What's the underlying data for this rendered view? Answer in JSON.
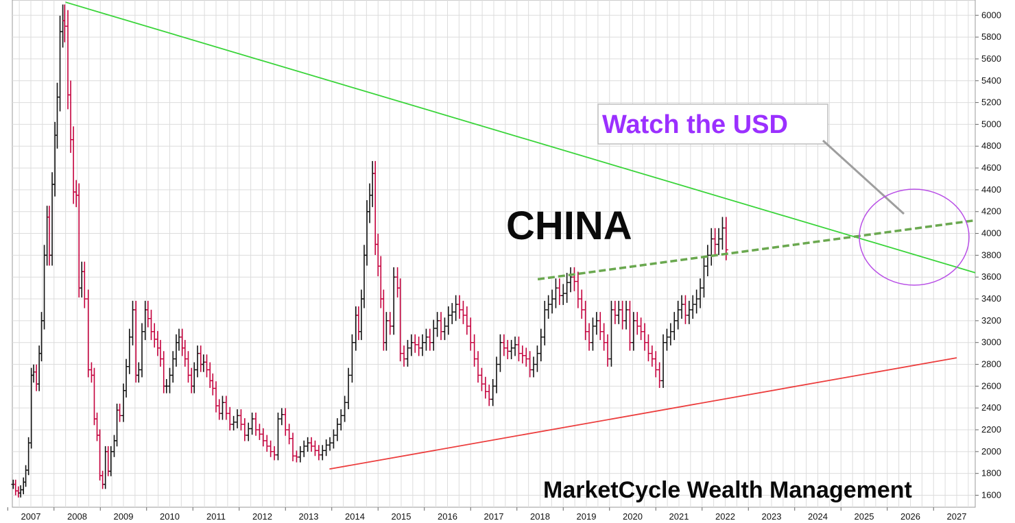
{
  "chart_data": {
    "type": "ohlc",
    "title": "",
    "subject_label": "CHINA",
    "watermark": "MarketCycle Wealth Management",
    "callout": "Watch the USD",
    "xlabel": "",
    "ylabel": "",
    "x_tick_labels": [
      "2007",
      "2008",
      "2009",
      "2010",
      "2011",
      "2012",
      "2013",
      "2014",
      "2015",
      "2016",
      "2017",
      "2018",
      "2019",
      "2020",
      "2021",
      "2022",
      "2023",
      "2024",
      "2025",
      "2026",
      "2027"
    ],
    "y_tick_labels": [
      "1600",
      "1800",
      "2000",
      "2200",
      "2400",
      "2600",
      "2800",
      "3000",
      "3200",
      "3400",
      "3600",
      "3800",
      "4000",
      "4200",
      "4400",
      "4600",
      "4800",
      "5000",
      "5200",
      "5400",
      "5600",
      "5800",
      "6000"
    ],
    "xlim": [
      2006.6,
      2027.4
    ],
    "ylim": [
      1490,
      6140
    ],
    "grid": true,
    "colors": {
      "bar_up": "#111111",
      "bar_down": "#c4003c",
      "resistance_line": "#39d439",
      "support_line": "#ec3d3d",
      "channel_top_dashed": "#6aa84f",
      "callout_text": "#9b30ff",
      "ellipse": "#b84ee6",
      "grid": "#dcdcdc"
    },
    "series": [
      {
        "values": [
          [
            2006.62,
            1700
          ],
          [
            2006.67,
            1640
          ],
          [
            2006.73,
            1620
          ],
          [
            2006.78,
            1650
          ],
          [
            2006.84,
            1720
          ],
          [
            2006.89,
            1830
          ],
          [
            2006.95,
            2080
          ],
          [
            2007.01,
            2700
          ],
          [
            2007.06,
            2730
          ],
          [
            2007.12,
            2620
          ],
          [
            2007.18,
            2900
          ],
          [
            2007.23,
            3200
          ],
          [
            2007.29,
            3800
          ],
          [
            2007.35,
            4150
          ],
          [
            2007.4,
            3800
          ],
          [
            2007.46,
            4450
          ],
          [
            2007.52,
            4900
          ],
          [
            2007.57,
            5250
          ],
          [
            2007.63,
            5850
          ],
          [
            2007.69,
            5950
          ],
          [
            2007.73,
            5900
          ],
          [
            2007.8,
            5270
          ],
          [
            2007.86,
            4860
          ],
          [
            2007.92,
            4380
          ],
          [
            2007.98,
            4350
          ],
          [
            2008.04,
            3500
          ],
          [
            2008.1,
            3650
          ],
          [
            2008.16,
            3400
          ],
          [
            2008.24,
            2750
          ],
          [
            2008.31,
            2700
          ],
          [
            2008.37,
            2300
          ],
          [
            2008.43,
            2150
          ],
          [
            2008.49,
            1780
          ],
          [
            2008.55,
            1700
          ],
          [
            2008.61,
            2000
          ],
          [
            2008.67,
            1820
          ],
          [
            2008.73,
            2000
          ],
          [
            2008.8,
            2100
          ],
          [
            2008.86,
            2380
          ],
          [
            2008.92,
            2330
          ],
          [
            2009.0,
            2560
          ],
          [
            2009.06,
            2780
          ],
          [
            2009.13,
            3050
          ],
          [
            2009.2,
            3300
          ],
          [
            2009.27,
            2700
          ],
          [
            2009.33,
            2750
          ],
          [
            2009.4,
            3100
          ],
          [
            2009.47,
            3300
          ],
          [
            2009.53,
            3220
          ],
          [
            2009.6,
            3100
          ],
          [
            2009.67,
            3030
          ],
          [
            2009.74,
            2950
          ],
          [
            2009.8,
            2850
          ],
          [
            2009.87,
            2600
          ],
          [
            2009.93,
            2600
          ],
          [
            2010.0,
            2700
          ],
          [
            2010.07,
            2850
          ],
          [
            2010.14,
            3000
          ],
          [
            2010.2,
            3050
          ],
          [
            2010.27,
            2950
          ],
          [
            2010.33,
            2850
          ],
          [
            2010.4,
            2700
          ],
          [
            2010.47,
            2600
          ],
          [
            2010.53,
            2750
          ],
          [
            2010.6,
            2900
          ],
          [
            2010.67,
            2800
          ],
          [
            2010.73,
            2820
          ],
          [
            2010.8,
            2750
          ],
          [
            2010.87,
            2650
          ],
          [
            2010.93,
            2580
          ],
          [
            2011.0,
            2420
          ],
          [
            2011.07,
            2350
          ],
          [
            2011.14,
            2450
          ],
          [
            2011.22,
            2350
          ],
          [
            2011.3,
            2250
          ],
          [
            2011.38,
            2270
          ],
          [
            2011.46,
            2330
          ],
          [
            2011.54,
            2250
          ],
          [
            2011.62,
            2150
          ],
          [
            2011.7,
            2210
          ],
          [
            2011.78,
            2300
          ],
          [
            2011.86,
            2200
          ],
          [
            2011.94,
            2160
          ],
          [
            2012.02,
            2100
          ],
          [
            2012.1,
            2050
          ],
          [
            2012.18,
            2000
          ],
          [
            2012.26,
            1970
          ],
          [
            2012.34,
            2300
          ],
          [
            2012.42,
            2340
          ],
          [
            2012.5,
            2200
          ],
          [
            2012.58,
            2120
          ],
          [
            2012.66,
            1960
          ],
          [
            2012.74,
            1950
          ],
          [
            2012.82,
            2000
          ],
          [
            2012.9,
            2050
          ],
          [
            2012.98,
            2080
          ],
          [
            2013.06,
            2050
          ],
          [
            2013.14,
            2010
          ],
          [
            2013.22,
            1970
          ],
          [
            2013.3,
            2010
          ],
          [
            2013.38,
            2060
          ],
          [
            2013.46,
            2080
          ],
          [
            2013.54,
            2150
          ],
          [
            2013.62,
            2250
          ],
          [
            2013.7,
            2330
          ],
          [
            2013.78,
            2450
          ],
          [
            2013.86,
            2700
          ],
          [
            2013.94,
            3000
          ],
          [
            2014.02,
            3250
          ],
          [
            2014.08,
            3100
          ],
          [
            2014.14,
            3400
          ],
          [
            2014.2,
            3800
          ],
          [
            2014.26,
            4200
          ],
          [
            2014.32,
            4350
          ],
          [
            2014.38,
            4550
          ],
          [
            2014.44,
            3900
          ],
          [
            2014.5,
            3700
          ],
          [
            2014.56,
            3400
          ],
          [
            2014.62,
            3000
          ],
          [
            2014.68,
            3200
          ],
          [
            2014.76,
            3150
          ],
          [
            2014.84,
            3600
          ],
          [
            2014.92,
            3500
          ],
          [
            2014.98,
            2900
          ],
          [
            2015.06,
            2850
          ],
          [
            2015.14,
            2950
          ],
          [
            2015.22,
            3000
          ],
          [
            2015.3,
            2980
          ],
          [
            2015.38,
            2950
          ],
          [
            2015.46,
            3000
          ],
          [
            2015.54,
            3050
          ],
          [
            2015.62,
            3000
          ],
          [
            2015.7,
            3130
          ],
          [
            2015.78,
            3200
          ],
          [
            2015.86,
            3100
          ],
          [
            2015.94,
            3150
          ],
          [
            2016.02,
            3250
          ],
          [
            2016.1,
            3280
          ],
          [
            2016.18,
            3350
          ],
          [
            2016.26,
            3300
          ],
          [
            2016.34,
            3250
          ],
          [
            2016.42,
            3150
          ],
          [
            2016.5,
            3000
          ],
          [
            2016.58,
            2850
          ],
          [
            2016.66,
            2700
          ],
          [
            2016.74,
            2620
          ],
          [
            2016.82,
            2550
          ],
          [
            2016.9,
            2480
          ],
          [
            2016.98,
            2600
          ],
          [
            2017.06,
            2800
          ],
          [
            2017.14,
            3000
          ],
          [
            2017.22,
            2950
          ],
          [
            2017.3,
            2920
          ],
          [
            2017.38,
            2950
          ],
          [
            2017.46,
            2980
          ],
          [
            2017.54,
            2900
          ],
          [
            2017.62,
            2880
          ],
          [
            2017.7,
            2850
          ],
          [
            2017.78,
            2750
          ],
          [
            2017.86,
            2800
          ],
          [
            2017.94,
            2900
          ],
          [
            2018.02,
            3050
          ],
          [
            2018.1,
            3300
          ],
          [
            2018.18,
            3350
          ],
          [
            2018.26,
            3400
          ],
          [
            2018.34,
            3500
          ],
          [
            2018.42,
            3430
          ],
          [
            2018.5,
            3450
          ],
          [
            2018.58,
            3550
          ],
          [
            2018.66,
            3600
          ],
          [
            2018.74,
            3560
          ],
          [
            2018.82,
            3400
          ],
          [
            2018.9,
            3300
          ],
          [
            2018.98,
            3100
          ],
          [
            2019.06,
            3000
          ],
          [
            2019.14,
            3150
          ],
          [
            2019.22,
            3200
          ],
          [
            2019.3,
            3100
          ],
          [
            2019.38,
            3000
          ],
          [
            2019.46,
            2850
          ],
          [
            2019.54,
            3300
          ],
          [
            2019.62,
            3250
          ],
          [
            2019.7,
            3300
          ],
          [
            2019.78,
            3200
          ],
          [
            2019.86,
            3300
          ],
          [
            2019.94,
            3000
          ],
          [
            2020.02,
            3200
          ],
          [
            2020.1,
            3150
          ],
          [
            2020.18,
            3100
          ],
          [
            2020.26,
            3000
          ],
          [
            2020.34,
            2900
          ],
          [
            2020.42,
            2850
          ],
          [
            2020.5,
            2750
          ],
          [
            2020.58,
            2650
          ],
          [
            2020.66,
            3000
          ],
          [
            2020.74,
            3050
          ],
          [
            2020.82,
            3100
          ],
          [
            2020.9,
            3200
          ],
          [
            2020.98,
            3300
          ],
          [
            2021.06,
            3350
          ],
          [
            2021.14,
            3250
          ],
          [
            2021.22,
            3300
          ],
          [
            2021.3,
            3350
          ],
          [
            2021.38,
            3400
          ],
          [
            2021.46,
            3500
          ],
          [
            2021.54,
            3700
          ],
          [
            2021.62,
            3800
          ],
          [
            2021.7,
            3950
          ],
          [
            2021.78,
            3900
          ],
          [
            2021.86,
            3950
          ],
          [
            2021.94,
            4050
          ],
          [
            2022.02,
            3850
          ]
        ]
      }
    ]
  }
}
